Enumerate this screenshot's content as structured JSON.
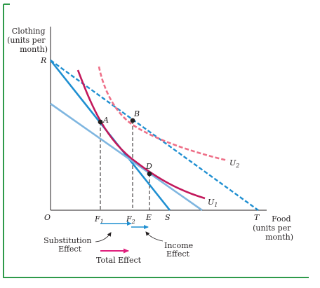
{
  "y_axis_label": [
    "Clothing",
    "(units per",
    "month)"
  ],
  "x_axis_label": [
    "Food",
    "(units per",
    "month)"
  ],
  "origin_label": "O",
  "points": {
    "R": "R",
    "S": "S",
    "T": "T",
    "A": "A",
    "B": "B",
    "D": "D",
    "E": "E"
  },
  "tick_labels": {
    "F1": {
      "base": "F",
      "sub": "1"
    },
    "F2": {
      "base": "F",
      "sub": "2"
    }
  },
  "curve_labels": {
    "U1": {
      "base": "U",
      "sub": "1"
    },
    "U2": {
      "base": "U",
      "sub": "2"
    }
  },
  "effects": {
    "substitution": [
      "Substitution",
      "Effect"
    ],
    "income": [
      "Income",
      "Effect"
    ],
    "total": "Total Effect"
  },
  "colors": {
    "frame": "#2e9a4a",
    "axis": "#231f20",
    "budget_RS": "#1f8fd1",
    "budget_parallel": "#7fb6e0",
    "budget_RT_dashed": "#1f8fd1",
    "u1": "#c2185b",
    "u2_dashed": "#ee7088",
    "point": "#231f20",
    "effect_arrows": "#1f8fd1",
    "total_arrow": "#e0207d"
  }
}
